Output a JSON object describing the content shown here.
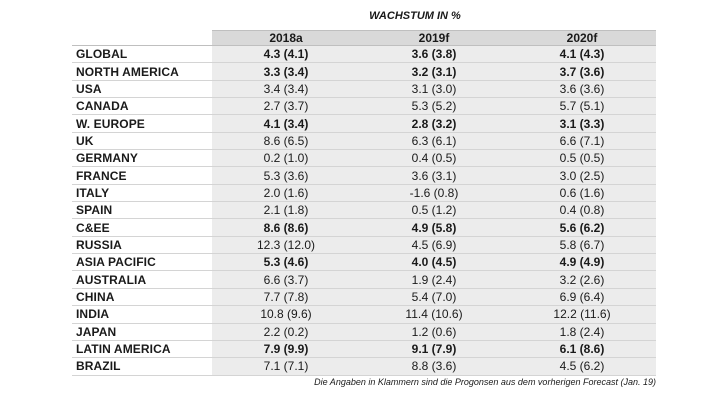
{
  "supertitle": "WACHSTUM IN %",
  "columns": [
    "2018a",
    "2019f",
    "2020f"
  ],
  "rows": [
    {
      "region": "GLOBAL",
      "bold": true,
      "values": [
        "4.3 (4.1)",
        "3.6 (3.8)",
        "4.1 (4.3)"
      ]
    },
    {
      "region": "NORTH AMERICA",
      "bold": true,
      "values": [
        "3.3 (3.4)",
        "3.2 (3.1)",
        "3.7 (3.6)"
      ]
    },
    {
      "region": "USA",
      "bold": false,
      "values": [
        "3.4 (3.4)",
        "3.1 (3.0)",
        "3.6 (3.6)"
      ]
    },
    {
      "region": "CANADA",
      "bold": false,
      "values": [
        "2.7 (3.7)",
        "5.3 (5.2)",
        "5.7 (5.1)"
      ]
    },
    {
      "region": "W. EUROPE",
      "bold": true,
      "values": [
        "4.1 (3.4)",
        "2.8 (3.2)",
        "3.1 (3.3)"
      ]
    },
    {
      "region": "UK",
      "bold": false,
      "values": [
        "8.6 (6.5)",
        "6.3 (6.1)",
        "6.6 (7.1)"
      ]
    },
    {
      "region": "GERMANY",
      "bold": false,
      "values": [
        "0.2 (1.0)",
        "0.4 (0.5)",
        "0.5 (0.5)"
      ]
    },
    {
      "region": "FRANCE",
      "bold": false,
      "values": [
        "5.3 (3.6)",
        "3.6 (3.1)",
        "3.0 (2.5)"
      ]
    },
    {
      "region": "ITALY",
      "bold": false,
      "values": [
        "2.0 (1.6)",
        "-1.6 (0.8)",
        "0.6 (1.6)"
      ]
    },
    {
      "region": "SPAIN",
      "bold": false,
      "values": [
        "2.1 (1.8)",
        "0.5 (1.2)",
        "0.4 (0.8)"
      ]
    },
    {
      "region": "C&EE",
      "bold": true,
      "values": [
        "8.6 (8.6)",
        "4.9 (5.8)",
        "5.6 (6.2)"
      ]
    },
    {
      "region": "RUSSIA",
      "bold": false,
      "values": [
        "12.3 (12.0)",
        "4.5 (6.9)",
        "5.8 (6.7)"
      ]
    },
    {
      "region": "ASIA PACIFIC",
      "bold": true,
      "values": [
        "5.3 (4.6)",
        "4.0 (4.5)",
        "4.9 (4.9)"
      ]
    },
    {
      "region": "AUSTRALIA",
      "bold": false,
      "values": [
        "6.6 (3.7)",
        "1.9 (2.4)",
        "3.2 (2.6)"
      ]
    },
    {
      "region": "CHINA",
      "bold": false,
      "values": [
        "7.7 (7.8)",
        "5.4 (7.0)",
        "6.9 (6.4)"
      ]
    },
    {
      "region": "INDIA",
      "bold": false,
      "values": [
        "10.8 (9.6)",
        "11.4 (10.6)",
        "12.2 (11.6)"
      ]
    },
    {
      "region": "JAPAN",
      "bold": false,
      "values": [
        "2.2 (0.2)",
        "1.2 (0.6)",
        "1.8 (2.4)"
      ]
    },
    {
      "region": "LATIN AMERICA",
      "bold": true,
      "values": [
        "7.9 (9.9)",
        "9.1 (7.9)",
        "6.1 (8.6)"
      ]
    },
    {
      "region": "BRAZIL",
      "bold": false,
      "values": [
        "7.1 (7.1)",
        "8.8 (3.6)",
        "4.5 (6.2)"
      ]
    }
  ],
  "footnote": "Die Angaben in Klammern sind die Progonsen aus dem vorherigen Forecast (Jan. 19)"
}
